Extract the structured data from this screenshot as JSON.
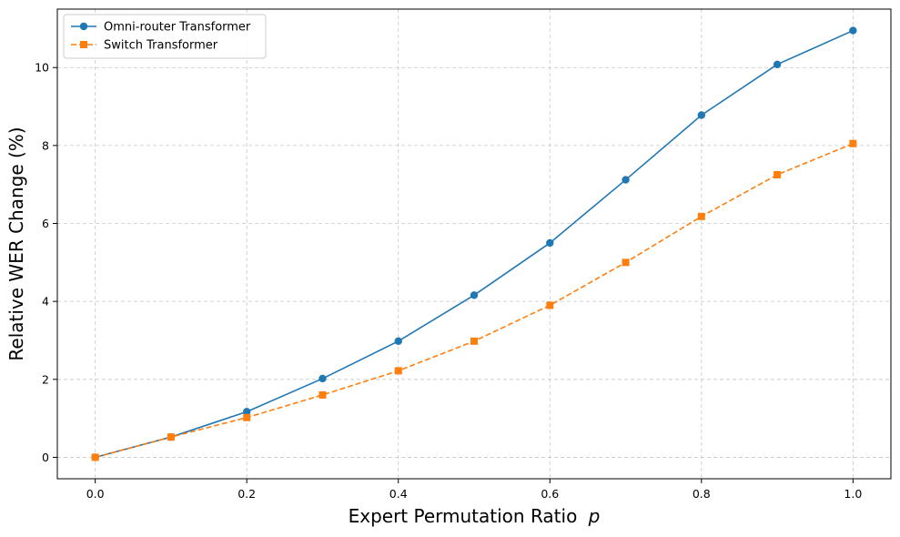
{
  "chart_data": {
    "type": "line",
    "xlabel": "Expert Permutation Ratio",
    "xlabel_var": "p",
    "ylabel": "Relative WER Change (%)",
    "xlim": [
      -0.05,
      1.05
    ],
    "ylim": [
      -0.55,
      11.5
    ],
    "x_ticks": [
      0.0,
      0.2,
      0.4,
      0.6,
      0.8,
      1.0
    ],
    "x_tick_labels": [
      "0.0",
      "0.2",
      "0.4",
      "0.6",
      "0.8",
      "1.0"
    ],
    "y_ticks": [
      0,
      2,
      4,
      6,
      8,
      10
    ],
    "y_tick_labels": [
      "0",
      "2",
      "4",
      "6",
      "8",
      "10"
    ],
    "grid": true,
    "legend_position": "top-left",
    "x": [
      0.0,
      0.1,
      0.2,
      0.3,
      0.4,
      0.5,
      0.6,
      0.7,
      0.8,
      0.9,
      1.0
    ],
    "series": [
      {
        "name": "Omni-router Transformer",
        "color": "#1f77b4",
        "marker": "circle",
        "line_style": "solid",
        "values": [
          0.0,
          0.52,
          1.17,
          2.02,
          2.98,
          4.16,
          5.5,
          7.12,
          8.78,
          10.08,
          10.95
        ]
      },
      {
        "name": "Switch Transformer",
        "color": "#ff7f0e",
        "marker": "square",
        "line_style": "dashed",
        "values": [
          0.0,
          0.52,
          1.02,
          1.6,
          2.22,
          2.98,
          3.9,
          5.0,
          6.18,
          7.25,
          8.05
        ]
      }
    ]
  }
}
